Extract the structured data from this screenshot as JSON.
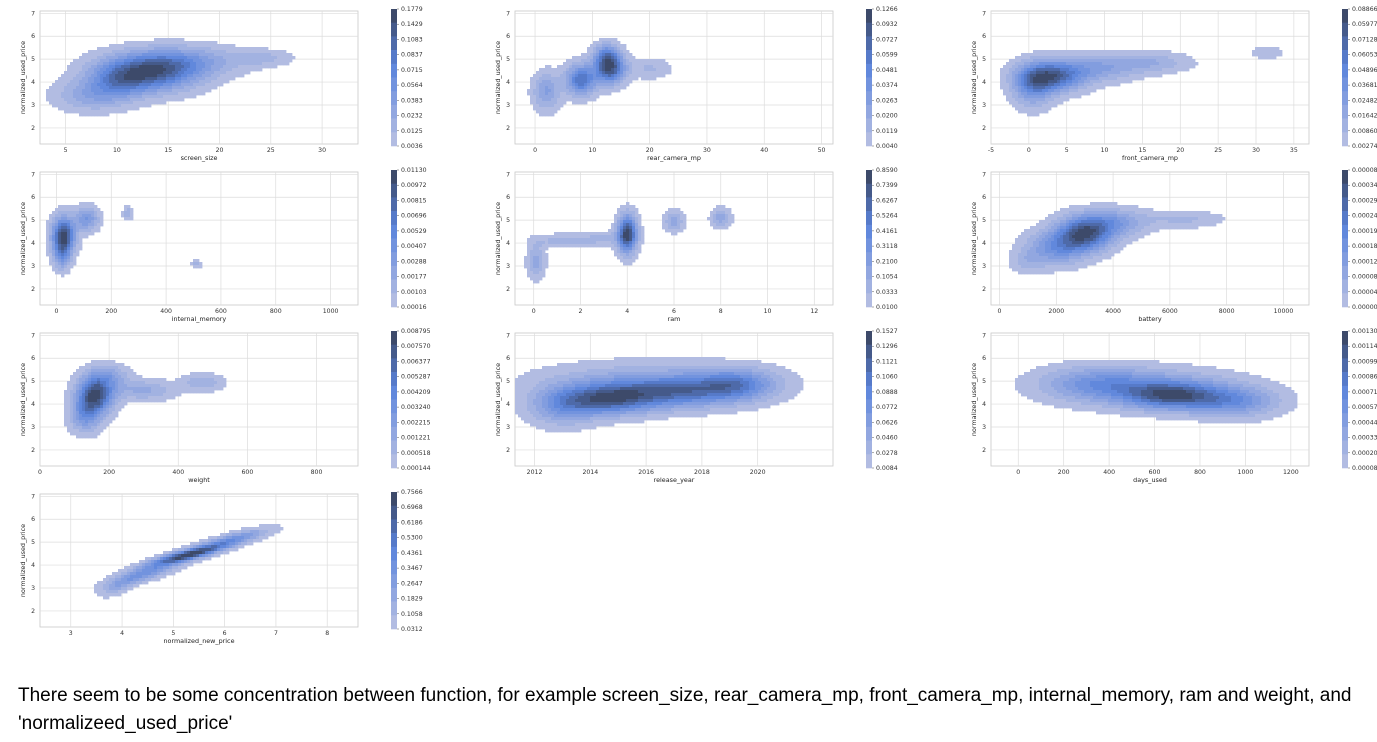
{
  "caption": "There seem to be some concentration between function, for example screen_size, rear_camera_mp, front_camera_mp, internal_memory, ram and weight, and 'normalizeed_used_price'",
  "colors": {
    "light": "#b2bce2",
    "mid": "#5b84dc",
    "dark": "#3d4a6a",
    "grid": "#dcdcdc",
    "frame": "#c8c8c8"
  },
  "chart_data": [
    {
      "type": "kde2d",
      "xlabel": "screen_size",
      "ylabel": "normalized_used_price",
      "xlim": [
        2.5,
        33.5
      ],
      "ylim": [
        1.3,
        7.1
      ],
      "xticks": [
        "5",
        "10",
        "15",
        "20",
        "25",
        "30"
      ],
      "xtick_values": [
        5,
        10,
        15,
        20,
        25,
        30
      ],
      "yticks": [
        "2",
        "3",
        "4",
        "5",
        "6",
        "7"
      ],
      "ytick_values": [
        2,
        3,
        4,
        5,
        6,
        7
      ],
      "colorbar": [
        "0.1779",
        "0.1429",
        "0.1083",
        "0.0837",
        "0.0715",
        "0.0564",
        "0.0383",
        "0.0232",
        "0.0125",
        "0.0036"
      ],
      "blobs": [
        {
          "x": 13.0,
          "y": 4.4,
          "sx": 3.2,
          "sy": 0.55,
          "w": 1.0
        },
        {
          "x": 16.5,
          "y": 4.9,
          "sx": 3.5,
          "sy": 0.45,
          "w": 0.45
        },
        {
          "x": 7.5,
          "y": 3.4,
          "sx": 2.4,
          "sy": 0.45,
          "w": 0.35
        },
        {
          "x": 24.0,
          "y": 5.05,
          "sx": 2.0,
          "sy": 0.25,
          "w": 0.22
        },
        {
          "x": 10.0,
          "y": 4.0,
          "sx": 2.0,
          "sy": 0.5,
          "w": 0.4
        }
      ]
    },
    {
      "type": "kde2d",
      "xlabel": "rear_camera_mp",
      "ylabel": "normalized_used_price",
      "xlim": [
        -3.5,
        52
      ],
      "ylim": [
        1.3,
        7.1
      ],
      "xticks": [
        "0",
        "10",
        "20",
        "30",
        "40",
        "50"
      ],
      "xtick_values": [
        0,
        10,
        20,
        30,
        40,
        50
      ],
      "yticks": [
        "2",
        "3",
        "4",
        "5",
        "6",
        "7"
      ],
      "ytick_values": [
        2,
        3,
        4,
        5,
        6,
        7
      ],
      "colorbar": [
        "0.1266",
        "0.0932",
        "0.0727",
        "0.0599",
        "0.0481",
        "0.0374",
        "0.0263",
        "0.0200",
        "0.0119",
        "0.0040"
      ],
      "blobs": [
        {
          "x": 13.0,
          "y": 4.6,
          "sx": 1.8,
          "sy": 0.45,
          "w": 1.0
        },
        {
          "x": 8.0,
          "y": 4.1,
          "sx": 1.8,
          "sy": 0.45,
          "w": 0.8
        },
        {
          "x": 2.0,
          "y": 3.6,
          "sx": 1.6,
          "sy": 0.55,
          "w": 0.4
        },
        {
          "x": 12.5,
          "y": 5.2,
          "sx": 1.5,
          "sy": 0.35,
          "w": 0.45
        },
        {
          "x": 20.0,
          "y": 4.6,
          "sx": 2.5,
          "sy": 0.3,
          "w": 0.18
        }
      ]
    },
    {
      "type": "kde2d",
      "xlabel": "front_camera_mp",
      "ylabel": "normalized_used_price",
      "xlim": [
        -5,
        37
      ],
      "ylim": [
        1.3,
        7.1
      ],
      "xticks": [
        "-5",
        "0",
        "5",
        "10",
        "15",
        "20",
        "25",
        "30",
        "35"
      ],
      "xtick_values": [
        -5,
        0,
        5,
        10,
        15,
        20,
        25,
        30,
        35
      ],
      "yticks": [
        "2",
        "3",
        "4",
        "5",
        "6",
        "7"
      ],
      "ytick_values": [
        2,
        3,
        4,
        5,
        6,
        7
      ],
      "colorbar": [
        "0.08866",
        "0.05977",
        "0.07128",
        "0.06053",
        "0.04896",
        "0.03681",
        "0.02482",
        "0.01642",
        "0.00860",
        "0.00274"
      ],
      "blobs": [
        {
          "x": 3.0,
          "y": 4.25,
          "sx": 2.8,
          "sy": 0.45,
          "w": 1.0
        },
        {
          "x": 0.5,
          "y": 3.8,
          "sx": 1.8,
          "sy": 0.6,
          "w": 0.55
        },
        {
          "x": 9.0,
          "y": 4.6,
          "sx": 3.5,
          "sy": 0.4,
          "w": 0.4
        },
        {
          "x": 16.0,
          "y": 4.85,
          "sx": 3.5,
          "sy": 0.3,
          "w": 0.3
        },
        {
          "x": 31.5,
          "y": 5.3,
          "sx": 1.4,
          "sy": 0.2,
          "w": 0.18
        }
      ]
    },
    {
      "type": "kde2d",
      "xlabel": "internal_memory",
      "ylabel": "normalized_used_price",
      "xlim": [
        -60,
        1100
      ],
      "ylim": [
        1.3,
        7.1
      ],
      "xticks": [
        "0",
        "200",
        "400",
        "600",
        "800",
        "1000"
      ],
      "xtick_values": [
        0,
        200,
        400,
        600,
        800,
        1000
      ],
      "yticks": [
        "2",
        "3",
        "4",
        "5",
        "6",
        "7"
      ],
      "ytick_values": [
        2,
        3,
        4,
        5,
        6,
        7
      ],
      "colorbar": [
        "0.01130",
        "0.00972",
        "0.00815",
        "0.00696",
        "0.00529",
        "0.00407",
        "0.00288",
        "0.00177",
        "0.00103",
        "0.00016"
      ],
      "blobs": [
        {
          "x": 25,
          "y": 4.3,
          "sx": 28,
          "sy": 0.55,
          "w": 1.0
        },
        {
          "x": 110,
          "y": 5.05,
          "sx": 30,
          "sy": 0.35,
          "w": 0.45
        },
        {
          "x": 260,
          "y": 5.3,
          "sx": 12,
          "sy": 0.2,
          "w": 0.25
        },
        {
          "x": 510,
          "y": 3.1,
          "sx": 12,
          "sy": 0.15,
          "w": 0.18
        },
        {
          "x": 20,
          "y": 3.4,
          "sx": 20,
          "sy": 0.4,
          "w": 0.35
        }
      ]
    },
    {
      "type": "kde2d",
      "xlabel": "ram",
      "ylabel": "normalized_used_price",
      "xlim": [
        -0.8,
        12.8
      ],
      "ylim": [
        1.3,
        7.1
      ],
      "xticks": [
        "0",
        "2",
        "4",
        "6",
        "8",
        "10",
        "12"
      ],
      "xtick_values": [
        0,
        2,
        4,
        6,
        8,
        10,
        12
      ],
      "yticks": [
        "2",
        "3",
        "4",
        "5",
        "6",
        "7"
      ],
      "ytick_values": [
        2,
        3,
        4,
        5,
        6,
        7
      ],
      "colorbar": [
        "0.8590",
        "0.7399",
        "0.6267",
        "0.5264",
        "0.4161",
        "0.3118",
        "0.2100",
        "0.1054",
        "0.0333",
        "0.0100"
      ],
      "blobs": [
        {
          "x": 4.0,
          "y": 4.4,
          "sx": 0.28,
          "sy": 0.55,
          "w": 1.0
        },
        {
          "x": 6.0,
          "y": 4.95,
          "sx": 0.28,
          "sy": 0.3,
          "w": 0.3
        },
        {
          "x": 8.0,
          "y": 5.1,
          "sx": 0.28,
          "sy": 0.28,
          "w": 0.3
        },
        {
          "x": 0.1,
          "y": 3.2,
          "sx": 0.25,
          "sy": 0.5,
          "w": 0.3
        },
        {
          "x": 1.3,
          "y": 4.1,
          "sx": 0.9,
          "sy": 0.2,
          "w": 0.2
        },
        {
          "x": 3.0,
          "y": 4.2,
          "sx": 0.6,
          "sy": 0.2,
          "w": 0.15
        }
      ]
    },
    {
      "type": "kde2d",
      "xlabel": "battery",
      "ylabel": "normalized_used_price",
      "xlim": [
        -300,
        10900
      ],
      "ylim": [
        1.3,
        7.1
      ],
      "xticks": [
        "0",
        "2000",
        "4000",
        "6000",
        "8000",
        "10000"
      ],
      "xtick_values": [
        0,
        2000,
        4000,
        6000,
        8000,
        10000
      ],
      "yticks": [
        "2",
        "3",
        "4",
        "5",
        "6",
        "7"
      ],
      "ytick_values": [
        2,
        3,
        4,
        5,
        6,
        7
      ],
      "colorbar": [
        "0.0000893",
        "0.0003484",
        "0.0002970",
        "0.0002441",
        "0.0001990",
        "0.0001890",
        "0.0001271",
        "0.0000818",
        "0.0000419",
        "0.0000096"
      ],
      "blobs": [
        {
          "x": 3000,
          "y": 4.4,
          "sx": 650,
          "sy": 0.5,
          "w": 1.0
        },
        {
          "x": 2000,
          "y": 3.8,
          "sx": 700,
          "sy": 0.5,
          "w": 0.55
        },
        {
          "x": 4000,
          "y": 4.9,
          "sx": 800,
          "sy": 0.4,
          "w": 0.45
        },
        {
          "x": 6500,
          "y": 5.05,
          "sx": 900,
          "sy": 0.25,
          "w": 0.2
        },
        {
          "x": 1000,
          "y": 3.2,
          "sx": 400,
          "sy": 0.35,
          "w": 0.2
        }
      ]
    },
    {
      "type": "kde2d",
      "xlabel": "weight",
      "ylabel": "normalized_used_price",
      "xlim": [
        0,
        920
      ],
      "ylim": [
        1.3,
        7.1
      ],
      "xticks": [
        "0",
        "200",
        "400",
        "600",
        "800"
      ],
      "xtick_values": [
        0,
        200,
        400,
        600,
        800
      ],
      "yticks": [
        "2",
        "3",
        "4",
        "5",
        "6",
        "7"
      ],
      "ytick_values": [
        2,
        3,
        4,
        5,
        6,
        7
      ],
      "colorbar": [
        "0.008795",
        "0.007570",
        "0.006377",
        "0.005287",
        "0.004209",
        "0.003240",
        "0.002215",
        "0.001221",
        "0.000518",
        "0.000144"
      ],
      "blobs": [
        {
          "x": 160,
          "y": 4.4,
          "sx": 35,
          "sy": 0.55,
          "w": 1.0
        },
        {
          "x": 130,
          "y": 3.5,
          "sx": 30,
          "sy": 0.5,
          "w": 0.45
        },
        {
          "x": 300,
          "y": 4.6,
          "sx": 60,
          "sy": 0.3,
          "w": 0.28
        },
        {
          "x": 470,
          "y": 4.95,
          "sx": 40,
          "sy": 0.25,
          "w": 0.25
        },
        {
          "x": 200,
          "y": 5.2,
          "sx": 40,
          "sy": 0.35,
          "w": 0.3
        }
      ]
    },
    {
      "type": "kde2d",
      "xlabel": "release_year",
      "ylabel": "normalized_used_price",
      "xlim": [
        2011.3,
        2022.7
      ],
      "ylim": [
        1.3,
        7.1
      ],
      "xticks": [
        "2012",
        "2014",
        "2016",
        "2018",
        "2020"
      ],
      "xtick_values": [
        2012,
        2014,
        2016,
        2018,
        2020
      ],
      "yticks": [
        "2",
        "3",
        "4",
        "5",
        "6",
        "7"
      ],
      "ytick_values": [
        2,
        3,
        4,
        5,
        6,
        7
      ],
      "colorbar": [
        "0.1527",
        "0.1296",
        "0.1121",
        "0.1060",
        "0.0888",
        "0.0772",
        "0.0626",
        "0.0460",
        "0.0278",
        "0.0084"
      ],
      "blobs": [
        {
          "x": 2014.6,
          "y": 4.2,
          "sx": 1.1,
          "sy": 0.45,
          "w": 1.0
        },
        {
          "x": 2017.0,
          "y": 4.5,
          "sx": 1.4,
          "sy": 0.45,
          "w": 0.75
        },
        {
          "x": 2019.2,
          "y": 4.85,
          "sx": 1.0,
          "sy": 0.45,
          "w": 0.75
        },
        {
          "x": 2013.0,
          "y": 3.9,
          "sx": 0.8,
          "sy": 0.55,
          "w": 0.55
        },
        {
          "x": 2016.0,
          "y": 4.9,
          "sx": 2.5,
          "sy": 0.6,
          "w": 0.4
        }
      ]
    },
    {
      "type": "kde2d",
      "xlabel": "days_used",
      "ylabel": "normalized_used_price",
      "xlim": [
        -120,
        1280
      ],
      "ylim": [
        1.3,
        7.1
      ],
      "xticks": [
        "0",
        "200",
        "400",
        "600",
        "800",
        "1000",
        "1200"
      ],
      "xtick_values": [
        0,
        200,
        400,
        600,
        800,
        1000,
        1200
      ],
      "yticks": [
        "2",
        "3",
        "4",
        "5",
        "6",
        "7"
      ],
      "ytick_values": [
        2,
        3,
        4,
        5,
        6,
        7
      ],
      "colorbar": [
        "0.001309",
        "0.001148",
        "0.000997",
        "0.000861",
        "0.000712",
        "0.000570",
        "0.000445",
        "0.000330",
        "0.000208",
        "0.000085"
      ],
      "blobs": [
        {
          "x": 680,
          "y": 4.35,
          "sx": 140,
          "sy": 0.4,
          "w": 1.0
        },
        {
          "x": 950,
          "y": 4.1,
          "sx": 130,
          "sy": 0.45,
          "w": 0.65
        },
        {
          "x": 350,
          "y": 4.9,
          "sx": 170,
          "sy": 0.5,
          "w": 0.55
        },
        {
          "x": 600,
          "y": 4.7,
          "sx": 250,
          "sy": 0.55,
          "w": 0.45
        }
      ]
    },
    {
      "type": "kde2d",
      "xlabel": "normalized_new_price",
      "ylabel": "normalized_used_price",
      "xlim": [
        2.4,
        8.6
      ],
      "ylim": [
        1.3,
        7.1
      ],
      "xticks": [
        "3",
        "4",
        "5",
        "6",
        "7",
        "8"
      ],
      "xtick_values": [
        3,
        4,
        5,
        6,
        7,
        8
      ],
      "yticks": [
        "2",
        "3",
        "4",
        "5",
        "6",
        "7"
      ],
      "ytick_values": [
        2,
        3,
        4,
        5,
        6,
        7
      ],
      "colorbar": [
        "0.7566",
        "0.6968",
        "0.6186",
        "0.5300",
        "0.4361",
        "0.3467",
        "0.2647",
        "0.1829",
        "0.1058",
        "0.0312"
      ],
      "blobs": [
        {
          "x": 5.3,
          "y": 4.45,
          "sx": 0.5,
          "sy": 0.32,
          "w": 1.0,
          "rho": 0.85
        },
        {
          "x": 4.4,
          "y": 3.6,
          "sx": 0.45,
          "sy": 0.35,
          "w": 0.5,
          "rho": 0.8
        },
        {
          "x": 6.2,
          "y": 5.15,
          "sx": 0.45,
          "sy": 0.3,
          "w": 0.45,
          "rho": 0.8
        },
        {
          "x": 3.9,
          "y": 3.0,
          "sx": 0.2,
          "sy": 0.25,
          "w": 0.2,
          "rho": 0.6
        }
      ]
    }
  ]
}
